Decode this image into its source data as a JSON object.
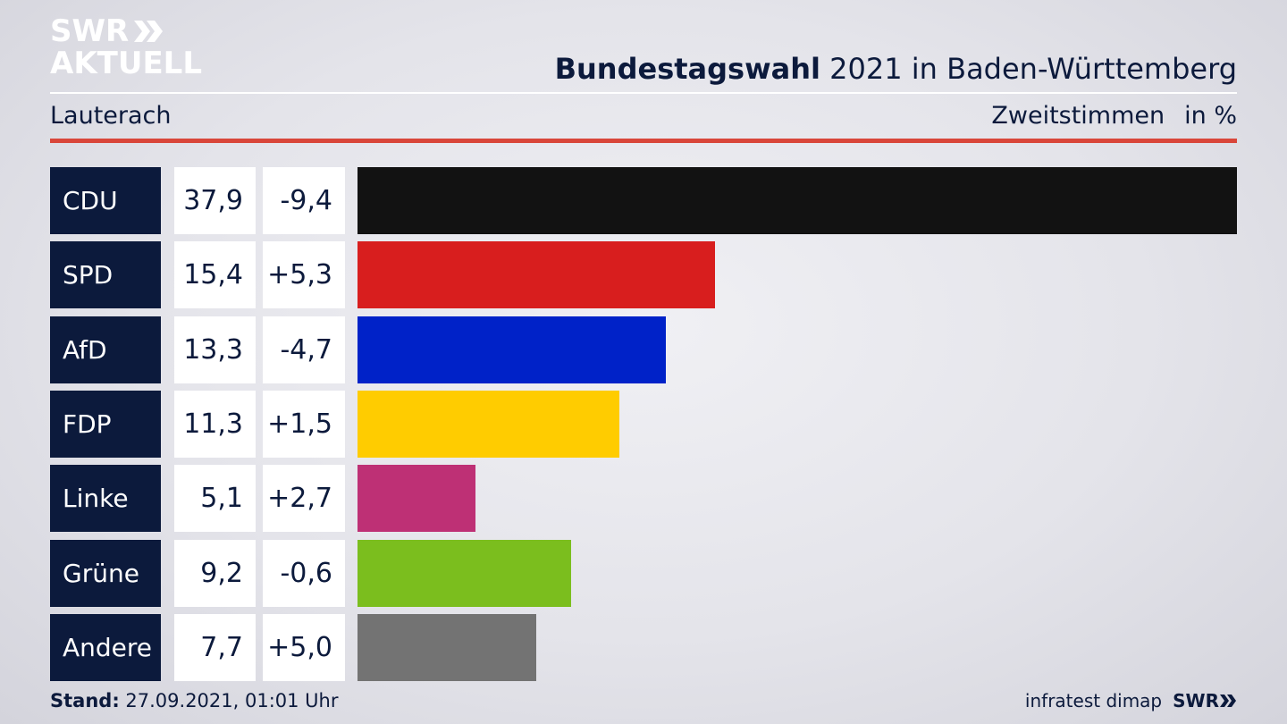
{
  "header": {
    "logo_line1": "SWR",
    "logo_line2": "AKTUELL",
    "title_bold": "Bundestagswahl",
    "title_rest": " 2021 in Baden-Württemberg",
    "region": "Lauterach",
    "measure": "Zweitstimmen",
    "unit": "in %"
  },
  "chart_data": {
    "type": "bar",
    "orientation": "horizontal",
    "categories": [
      "CDU",
      "SPD",
      "AfD",
      "FDP",
      "Linke",
      "Grüne",
      "Andere"
    ],
    "values": [
      37.9,
      15.4,
      13.3,
      11.3,
      5.1,
      9.2,
      7.7
    ],
    "value_labels": [
      "37,9",
      "15,4",
      "13,3",
      "11,3",
      "5,1",
      "9,2",
      "7,7"
    ],
    "changes": [
      "-9,4",
      "+5,3",
      "-4,7",
      "+1,5",
      "+2,7",
      "-0,6",
      "+5,0"
    ],
    "colors": [
      "#121212",
      "#d81e1e",
      "#0022c8",
      "#ffcc00",
      "#be3075",
      "#7bbe1e",
      "#737373"
    ],
    "xlim": [
      0,
      37.9
    ]
  },
  "footer": {
    "stand_label": "Stand:",
    "stand_value": " 27.09.2021, 01:01 Uhr",
    "source": "infratest dimap",
    "brand": "SWR"
  }
}
